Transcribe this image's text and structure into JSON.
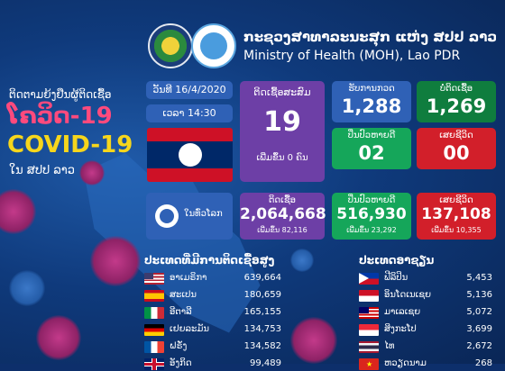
{
  "header": {
    "org_lao": "ກະຊວງສາທາລະນະສຸກ ແຫ່ງ ສປປ ລາວ",
    "org_en": "Ministry of Health (MOH), Lao PDR"
  },
  "title": {
    "line1": "ຕິດຕາມຍ້ງຢືນຜູ້ຕິດເຊື້ອ",
    "line2": "ໂຄວິດ-19",
    "line3": "COVID-19",
    "line4": "ໃນ ສປປ ລາວ"
  },
  "date": "ວັນທີ 16/4/2020",
  "time": "ເວລາ 14:30",
  "lao": {
    "cumulative_label": "ຕິດເຊື້ອສະສົມ",
    "cumulative_value": "19",
    "cumulative_sub": "ເພີ່ມຂຶ້ນ 0 ຄົນ",
    "tested_label": "ຮັບການກວດ",
    "tested_value": "1,288",
    "negative_label": "ບໍ່ຕິດເຊື້ອ",
    "negative_value": "1,269",
    "recovered_label": "ປິ່ນປົວຫາຍດີ",
    "recovered_value": "02",
    "deaths_label": "ເສຍຊີວິດ",
    "deaths_value": "00"
  },
  "world": {
    "label": "ໃນທົ່ວໂລກ",
    "cases_label": "ຕິດເຊື້ອ",
    "cases_value": "2,064,668",
    "cases_sub": "ເພີ່ມຂຶ້ນ 82,116",
    "recovered_label": "ປິ່ນປົວຫາຍດີ",
    "recovered_value": "516,930",
    "recovered_sub": "ເພີ່ມຂຶ້ນ 23,292",
    "deaths_label": "ເສຍຊີວິດ",
    "deaths_value": "137,108",
    "deaths_sub": "ເພີ່ມຂຶ້ນ 10,355"
  },
  "lists": {
    "left_title": "ປະເທດທີ່ມີການຕິດເຊື້ອສູງ",
    "right_title": "ປະເທດອາຊຽນ",
    "left": [
      {
        "name": "ອາເມຣິກາ",
        "value": "639,664",
        "flag": "usa"
      },
      {
        "name": "ສະເປນ",
        "value": "180,659",
        "flag": "spain"
      },
      {
        "name": "ອີຕາລີ",
        "value": "165,155",
        "flag": "italy"
      },
      {
        "name": "ເຢຍລະມັນ",
        "value": "134,753",
        "flag": "germany"
      },
      {
        "name": "ຝຣັ່ງ",
        "value": "134,582",
        "flag": "france"
      },
      {
        "name": "ອັງກິດ",
        "value": "99,489",
        "flag": "uk"
      }
    ],
    "right": [
      {
        "name": "ຟີລິປິນ",
        "value": "5,453",
        "flag": "philippines"
      },
      {
        "name": "ອິນໂດເນເຊຍ",
        "value": "5,136",
        "flag": "indonesia"
      },
      {
        "name": "ມາເລເຊຍ",
        "value": "5,072",
        "flag": "malaysia"
      },
      {
        "name": "ສິງກະໂປ",
        "value": "3,699",
        "flag": "singapore"
      },
      {
        "name": "ໄທ",
        "value": "2,672",
        "flag": "thailand"
      },
      {
        "name": "ຫວຽດນາມ",
        "value": "268",
        "flag": "vietnam"
      }
    ]
  },
  "colors": {
    "background": "#0f3a7c",
    "purple": "#6d3fa6",
    "blue": "#2f61b6",
    "green_dark": "#0f7d3e",
    "green": "#15a65a",
    "red": "#d21f2a",
    "title_pink": "#ff4a7d",
    "title_yellow": "#f6d61c"
  }
}
